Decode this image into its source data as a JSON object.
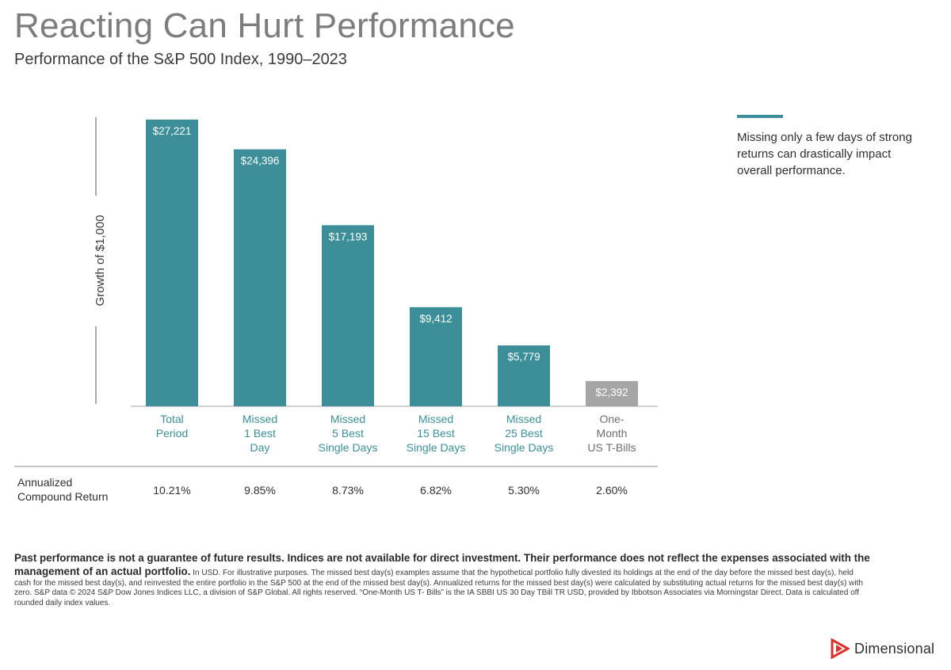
{
  "header": {
    "title": "Reacting Can Hurt Performance",
    "subtitle": "Performance of the S&P 500 Index, 1990–2023"
  },
  "annotation": {
    "text": "Missing only a few days of strong returns can drastically impact overall performance."
  },
  "chart_data": {
    "type": "bar",
    "ylabel": "Growth of $1,000",
    "ylim": [
      0,
      27221
    ],
    "categories": [
      [
        "Total",
        "Period"
      ],
      [
        "Missed",
        "1 Best",
        "Day"
      ],
      [
        "Missed",
        "5 Best",
        "Single Days"
      ],
      [
        "Missed",
        "15 Best",
        "Single Days"
      ],
      [
        "Missed",
        "25 Best",
        "Single Days"
      ],
      [
        "One-",
        "Month",
        "US T-Bills"
      ]
    ],
    "values": [
      27221,
      24396,
      17193,
      9412,
      5779,
      2392
    ],
    "data_labels": [
      "$27,221",
      "$24,396",
      "$17,193",
      "$9,412",
      "$5,779",
      "$2,392"
    ],
    "bar_colors": [
      "#3c8f99",
      "#3c8f99",
      "#3c8f99",
      "#3c8f99",
      "#3c8f99",
      "#a5a5a5"
    ],
    "category_colors": [
      "#3c8f99",
      "#3c8f99",
      "#3c8f99",
      "#3c8f99",
      "#3c8f99",
      "#6e6e6e"
    ],
    "row_label": [
      "Annualized",
      "Compound Return"
    ],
    "row_values": [
      "10.21%",
      "9.85%",
      "8.73%",
      "6.82%",
      "5.30%",
      "2.60%"
    ]
  },
  "footnote": {
    "bold": "Past performance is not a guarantee of future results. Indices are not available for direct investment. Their performance does not reflect the expenses associated with the management of an actual portfolio.",
    "text": " In USD. For illustrative purposes. The missed best day(s) examples assume that the hypothetical portfolio fully divested its holdings at the end of the day before the missed best day(s), held cash for the missed best day(s), and reinvested the entire portfolio in the S&P 500 at the end of the missed best day(s). Annualized returns for the missed best day(s) were calculated by substituting actual returns for the missed best day(s) with zero. S&P data © 2024 S&P Dow Jones Indices LLC, a division of S&P Global. All rights reserved. “One-Month US T- Bills” is the IA SBBI US 30 Day TBill TR USD, provided by Ibbotson Associates via Morningstar Direct. Data is calculated off rounded daily index values."
  },
  "logo": {
    "name": "Dimensional",
    "icon": "dimensional-logo-icon",
    "color": "#d9342b"
  }
}
